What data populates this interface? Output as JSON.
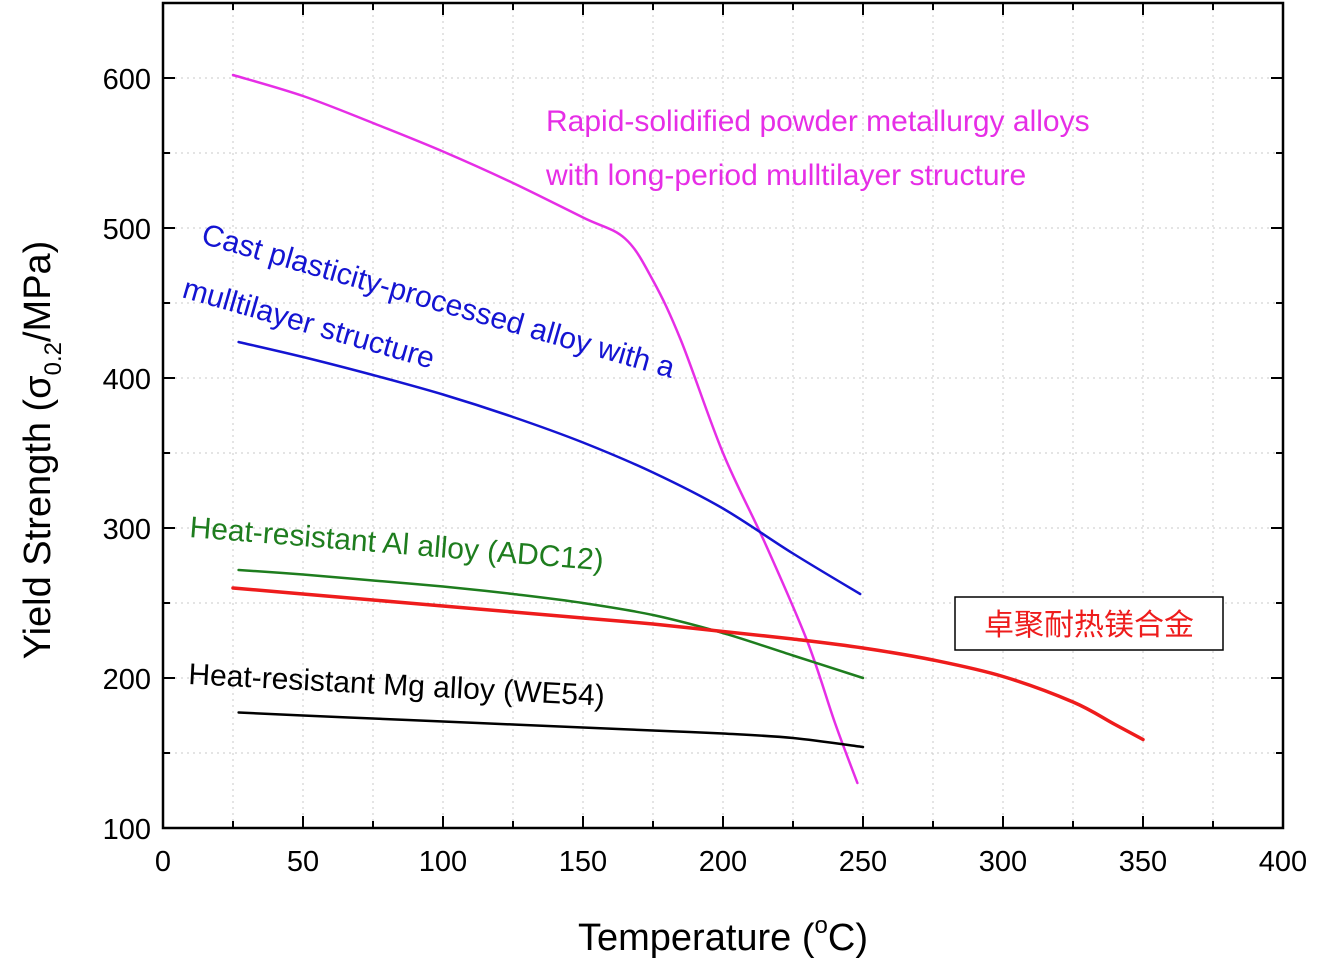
{
  "chart_data": {
    "type": "line",
    "title": "",
    "xlabel": "Temperature (°C)",
    "xlabel_parts": {
      "main": "Temperature (",
      "superscript": "o",
      "tail": "C)"
    },
    "ylabel": "Yield Strength (σ0.2/MPa)",
    "ylabel_parts": {
      "main": "Yield Strength (σ",
      "subscript": "0.2",
      "tail": "/MPa)"
    },
    "xlim": [
      0,
      400
    ],
    "ylim": [
      100,
      650
    ],
    "xticks": [
      0,
      50,
      100,
      150,
      200,
      250,
      300,
      350,
      400
    ],
    "xtick_labels": [
      "0",
      "50",
      "100",
      "150",
      "200",
      "250",
      "300",
      "350",
      "400"
    ],
    "yticks": [
      100,
      200,
      300,
      400,
      500,
      600
    ],
    "ytick_labels": [
      "100",
      "200",
      "300",
      "400",
      "500",
      "600"
    ],
    "grid": true,
    "series": [
      {
        "name": "Rapid-solidified powder metallurgy alloys with long-period mulltilayer structure",
        "label_lines": [
          "Rapid-solidified powder metallurgy alloys",
          "with long-period mulltilayer structure"
        ],
        "color": "#e62ee6",
        "x": [
          25,
          50,
          75,
          100,
          125,
          150,
          165,
          175,
          185,
          200,
          215,
          230,
          240,
          248
        ],
        "y": [
          602,
          588,
          570,
          551,
          530,
          507,
          493,
          465,
          425,
          350,
          290,
          225,
          170,
          130
        ]
      },
      {
        "name": "Cast plasticity-processed alloy with a mulltilayer structure",
        "label_lines": [
          "Cast plasticity-processed alloy with a",
          "mulltilayer structure"
        ],
        "color": "#1414d2",
        "x": [
          27,
          50,
          75,
          100,
          125,
          150,
          175,
          200,
          225,
          249
        ],
        "y": [
          424,
          414,
          402,
          389,
          374,
          357,
          337,
          313,
          283,
          256
        ]
      },
      {
        "name": "Heat-resistant Al alloy (ADC12)",
        "label_lines": [
          "Heat-resistant Al alloy (ADC12)"
        ],
        "color": "#1e7d1e",
        "x": [
          27,
          50,
          75,
          100,
          125,
          150,
          175,
          200,
          225,
          250
        ],
        "y": [
          272,
          269,
          265,
          261,
          256,
          250,
          242,
          230,
          215,
          200
        ]
      },
      {
        "name": "卓聚耐热镁合金",
        "label_lines": [
          "卓聚耐热镁合金"
        ],
        "color": "#ee1c1c",
        "x": [
          25,
          50,
          75,
          100,
          125,
          150,
          175,
          200,
          225,
          250,
          275,
          300,
          325,
          340,
          350
        ],
        "y": [
          260,
          256,
          252,
          248,
          244,
          240,
          236,
          231,
          226,
          220,
          212,
          201,
          184,
          169,
          159
        ]
      },
      {
        "name": "Heat-resistant Mg alloy (WE54)",
        "label_lines": [
          "Heat-resistant Mg alloy (WE54)"
        ],
        "color": "#000000",
        "x": [
          27,
          50,
          75,
          100,
          125,
          150,
          175,
          200,
          225,
          250
        ],
        "y": [
          177,
          175,
          173,
          171,
          169,
          167,
          165,
          163,
          160,
          154
        ]
      }
    ]
  }
}
